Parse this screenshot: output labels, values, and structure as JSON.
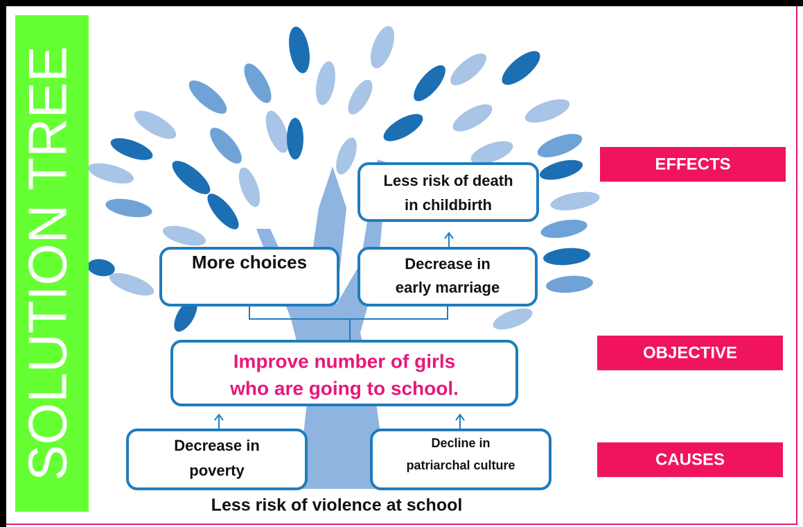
{
  "title": "SOLUTION TREE",
  "labels": [
    "EFFECTS",
    "OBJECTIVE",
    "CAUSES"
  ],
  "nodes": [
    {
      "lines": [
        "Less risk of death",
        "in childbirth"
      ]
    },
    {
      "lines": [
        "More  choices"
      ]
    },
    {
      "lines": [
        "Decrease in",
        "early marriage"
      ]
    },
    {
      "lines": [
        "Improve  number  of  girls",
        "who are going to school."
      ]
    },
    {
      "lines": [
        "Decrease in",
        "poverty"
      ]
    },
    {
      "lines": [
        "Decline in",
        "patriarchal culture"
      ]
    }
  ],
  "footer": "Less risk of violence at school"
}
